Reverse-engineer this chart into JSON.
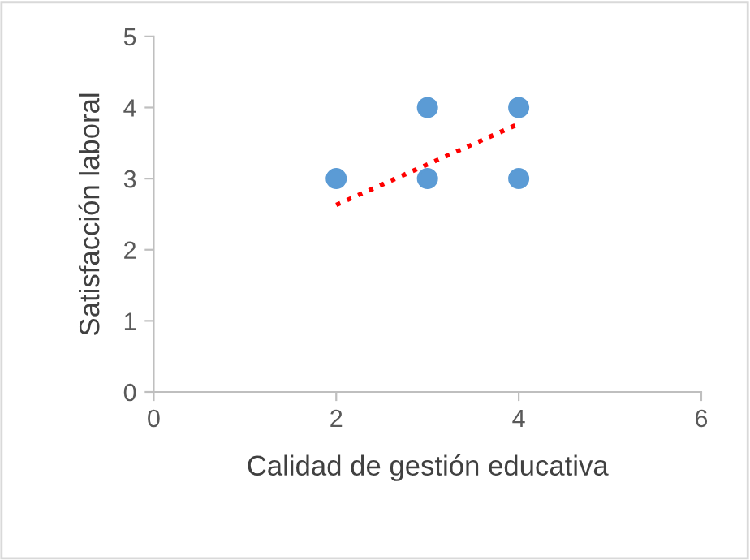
{
  "chart_data": {
    "type": "scatter",
    "xlabel": "Calidad de gestión educativa",
    "ylabel": "Satisfacción laboral",
    "xlim": [
      0,
      6
    ],
    "xticks": [
      0,
      2,
      4,
      6
    ],
    "ylim": [
      0,
      5
    ],
    "yticks": [
      0,
      1,
      2,
      3,
      4,
      5
    ],
    "grid": false,
    "legend": false,
    "marker": "circle",
    "series": [
      {
        "color": "#5b9bd5",
        "x": [
          2,
          3,
          3,
          4,
          4
        ],
        "values": [
          3,
          4,
          3,
          4,
          3
        ]
      },
      {
        "type": "line",
        "color": "#ff0000",
        "line_style": "dotted",
        "marker": "none",
        "x": [
          2,
          4
        ],
        "values": [
          2.63,
          3.77
        ]
      }
    ]
  }
}
